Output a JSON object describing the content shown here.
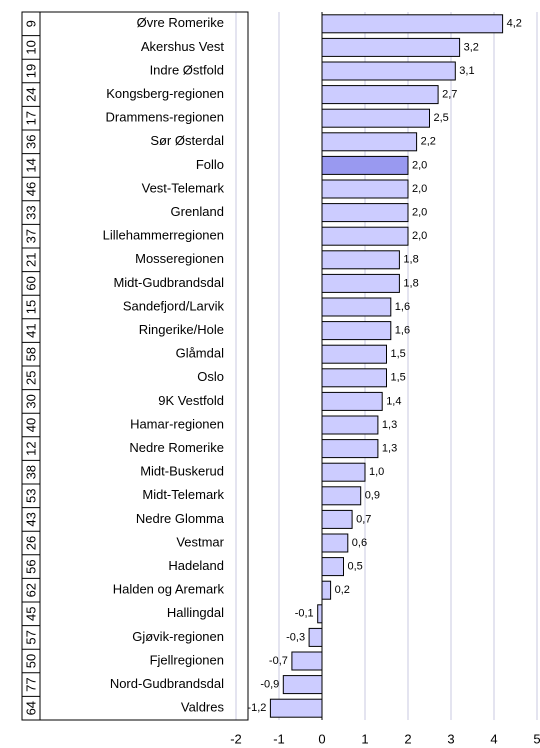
{
  "chart_data": {
    "type": "barh",
    "ranks": [
      "9",
      "10",
      "19",
      "24",
      "17",
      "36",
      "14",
      "46",
      "33",
      "37",
      "21",
      "60",
      "15",
      "41",
      "58",
      "25",
      "30",
      "40",
      "12",
      "38",
      "53",
      "43",
      "26",
      "56",
      "62",
      "45",
      "57",
      "50",
      "77",
      "64"
    ],
    "categories": [
      "Øvre Romerike",
      "Akershus Vest",
      "Indre Østfold",
      "Kongsberg-regionen",
      "Drammens-regionen",
      "Sør Østerdal",
      "Follo",
      "Vest-Telemark",
      "Grenland",
      "Lillehammerregionen",
      "Mosseregionen",
      "Midt-Gudbrandsdal",
      "Sandefjord/Larvik",
      "Ringerike/Hole",
      "Glåmdal",
      "Oslo",
      "9K Vestfold",
      "Hamar-regionen",
      "Nedre Romerike",
      "Midt-Buskerud",
      "Midt-Telemark",
      "Nedre Glomma",
      "Vestmar",
      "Hadeland",
      "Halden og Aremark",
      "Hallingdal",
      "Gjøvik-regionen",
      "Fjellregionen",
      "Nord-Gudbrandsdal",
      "Valdres"
    ],
    "values": [
      4.2,
      3.2,
      3.1,
      2.7,
      2.5,
      2.2,
      2.0,
      2.0,
      2.0,
      2.0,
      1.8,
      1.8,
      1.6,
      1.6,
      1.5,
      1.5,
      1.4,
      1.3,
      1.3,
      1.0,
      0.9,
      0.7,
      0.6,
      0.5,
      0.2,
      -0.1,
      -0.3,
      -0.7,
      -0.9,
      -1.2
    ],
    "value_labels": [
      "4,2",
      "3,2",
      "3,1",
      "2,7",
      "2,5",
      "2,2",
      "2,0",
      "2,0",
      "2,0",
      "2,0",
      "1,8",
      "1,8",
      "1,6",
      "1,6",
      "1,5",
      "1,5",
      "1,4",
      "1,3",
      "1,3",
      "1,0",
      "0,9",
      "0,7",
      "0,6",
      "0,5",
      "0,2",
      "-0,1",
      "-0,3",
      "-0,7",
      "-0,9",
      "-1,2"
    ],
    "colors": [
      "#ccccff",
      "#ccccff",
      "#ccccff",
      "#ccccff",
      "#ccccff",
      "#ccccff",
      "#9999f0",
      "#ccccff",
      "#ccccff",
      "#ccccff",
      "#ccccff",
      "#ccccff",
      "#ccccff",
      "#ccccff",
      "#ccccff",
      "#ccccff",
      "#ccccff",
      "#ccccff",
      "#ccccff",
      "#ccccff",
      "#ccccff",
      "#ccccff",
      "#ccccff",
      "#ccccff",
      "#ccccff",
      "#ccccff",
      "#ccccff",
      "#ccccff",
      "#ccccff",
      "#ccccff"
    ],
    "xlim": [
      -2,
      5
    ],
    "xticks": [
      -2,
      -1,
      0,
      1,
      2,
      3,
      4,
      5
    ],
    "grid": true
  }
}
